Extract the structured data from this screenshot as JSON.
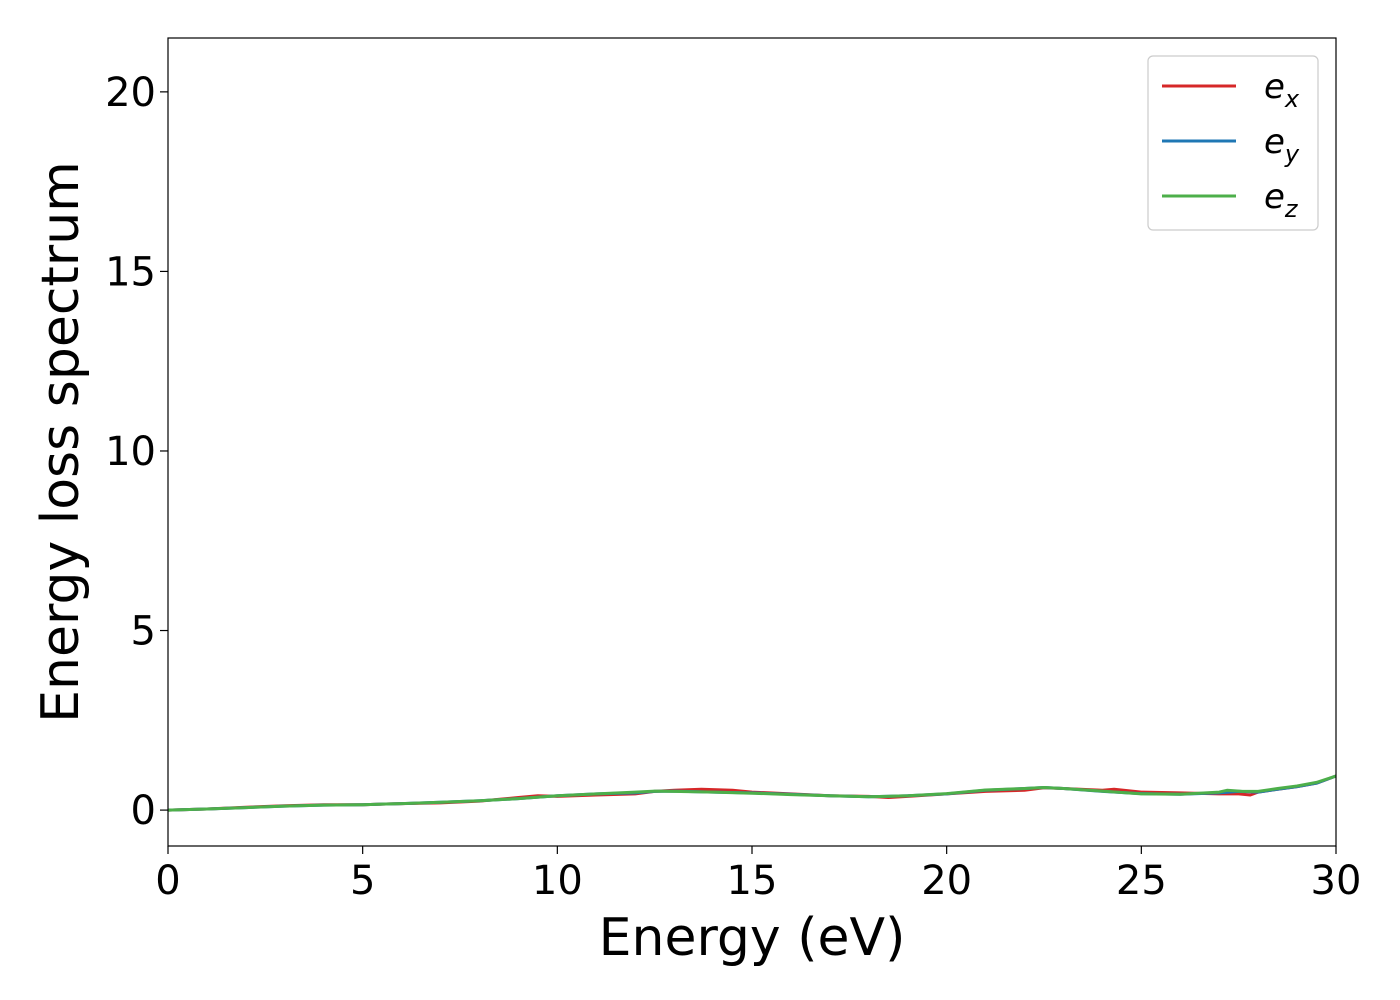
{
  "chart_data": {
    "type": "line",
    "title": "",
    "xlabel": "Energy (eV)",
    "ylabel": "Energy loss spectrum",
    "xlim": [
      0,
      30
    ],
    "ylim": [
      -1,
      21.5
    ],
    "xticks": [
      0,
      5,
      10,
      15,
      20,
      25,
      30
    ],
    "yticks": [
      0,
      5,
      10,
      15,
      20
    ],
    "grid": false,
    "legend_position": "top-right",
    "series": [
      {
        "name": "e",
        "subscript": "x",
        "color": "#d62728",
        "x": [
          0,
          1,
          2,
          3,
          4,
          5,
          6,
          7,
          8,
          9,
          9.5,
          10,
          11,
          12,
          12.5,
          13,
          13.7,
          14.5,
          15,
          16,
          17,
          18,
          18.5,
          19,
          20,
          21,
          22,
          22.5,
          23,
          24,
          24.3,
          25,
          26,
          27,
          27.5,
          27.8,
          28,
          28.5,
          29,
          29.5,
          30
        ],
        "y": [
          0,
          0.03,
          0.08,
          0.12,
          0.15,
          0.15,
          0.18,
          0.2,
          0.25,
          0.35,
          0.4,
          0.38,
          0.42,
          0.45,
          0.52,
          0.55,
          0.58,
          0.55,
          0.5,
          0.45,
          0.4,
          0.38,
          0.35,
          0.38,
          0.45,
          0.52,
          0.55,
          0.62,
          0.6,
          0.55,
          0.58,
          0.5,
          0.48,
          0.45,
          0.45,
          0.42,
          0.5,
          0.58,
          0.65,
          0.75,
          0.95
        ]
      },
      {
        "name": "e",
        "subscript": "y",
        "color": "#1f77b4",
        "x": [
          0,
          1,
          2,
          3,
          4,
          5,
          6,
          7,
          8,
          9,
          10,
          11,
          12,
          12.5,
          13,
          14,
          15,
          16,
          17,
          18,
          19,
          20,
          21,
          22,
          22.5,
          23,
          24,
          25,
          26,
          27,
          27.5,
          28,
          28.5,
          29,
          29.5,
          30
        ],
        "y": [
          0,
          0.03,
          0.07,
          0.11,
          0.14,
          0.15,
          0.18,
          0.22,
          0.26,
          0.32,
          0.4,
          0.45,
          0.48,
          0.52,
          0.53,
          0.5,
          0.48,
          0.44,
          0.4,
          0.37,
          0.4,
          0.45,
          0.55,
          0.6,
          0.63,
          0.6,
          0.52,
          0.46,
          0.44,
          0.48,
          0.52,
          0.5,
          0.58,
          0.65,
          0.75,
          0.95
        ]
      },
      {
        "name": "e",
        "subscript": "z",
        "color": "#4daf4a",
        "x": [
          0,
          1,
          2,
          3,
          4,
          5,
          6,
          7,
          8,
          9,
          10,
          11,
          12,
          12.5,
          13,
          14,
          15,
          16,
          17,
          18,
          19,
          20,
          21,
          22,
          22.5,
          23,
          24,
          25,
          26,
          27,
          27.2,
          27.6,
          28,
          28.5,
          29,
          29.5,
          30
        ],
        "y": [
          0,
          0.03,
          0.07,
          0.11,
          0.14,
          0.15,
          0.18,
          0.22,
          0.26,
          0.32,
          0.4,
          0.45,
          0.5,
          0.53,
          0.52,
          0.5,
          0.47,
          0.43,
          0.4,
          0.37,
          0.4,
          0.46,
          0.56,
          0.6,
          0.63,
          0.6,
          0.53,
          0.45,
          0.44,
          0.5,
          0.55,
          0.52,
          0.52,
          0.6,
          0.67,
          0.77,
          0.95
        ]
      }
    ]
  }
}
